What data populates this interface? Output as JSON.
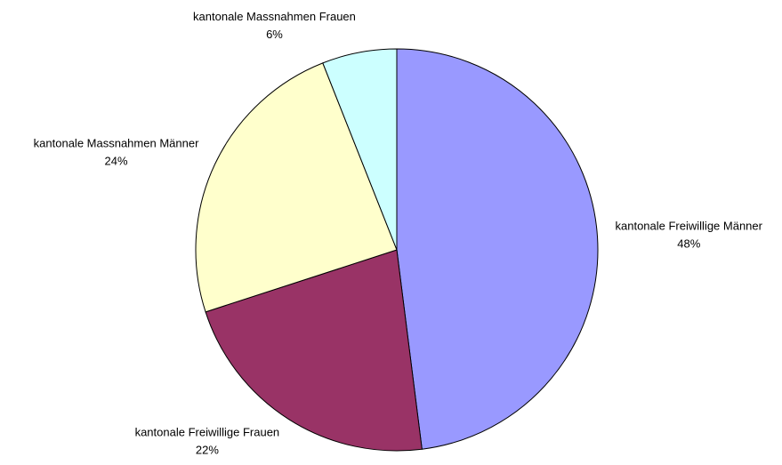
{
  "chart_data": {
    "type": "pie",
    "categories": [
      "kantonale Freiwillige Männer",
      "kantonale Freiwillige Frauen",
      "kantonale Massnahmen Männer",
      "kantonale Massnahmen Frauen"
    ],
    "values": [
      48,
      22,
      24,
      6
    ],
    "value_labels": [
      "48%",
      "22%",
      "24%",
      "6%"
    ],
    "colors": [
      "#9999ff",
      "#993366",
      "#ffffcc",
      "#ccffff"
    ]
  }
}
